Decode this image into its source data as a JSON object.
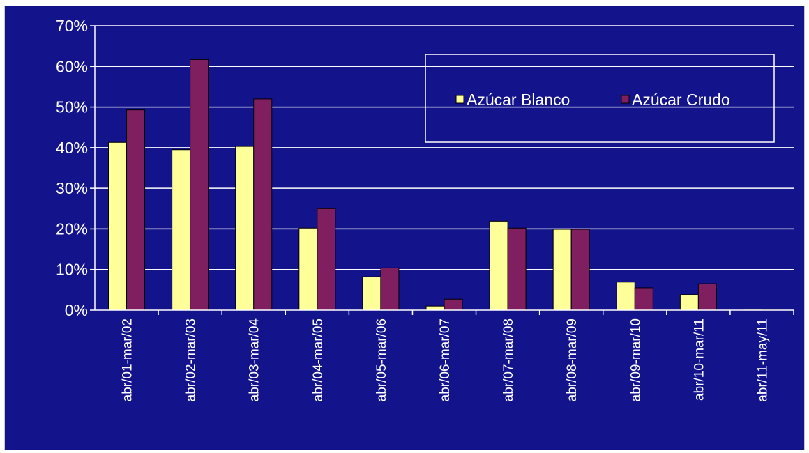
{
  "chart_data": {
    "type": "bar",
    "title": "",
    "xlabel": "",
    "ylabel": "",
    "ylim": [
      0,
      70
    ],
    "y_unit": "%",
    "y_ticks": [
      "0%",
      "10%",
      "20%",
      "30%",
      "40%",
      "50%",
      "60%",
      "70%"
    ],
    "grid": true,
    "legend_position": "top-right",
    "categories": [
      "abr/01-mar/02",
      "abr/02-mar/03",
      "abr/03-mar/04",
      "abr/04-mar/05",
      "abr/05-mar/06",
      "abr/06-mar/07",
      "abr/07-mar/08",
      "abr/08-mar/09",
      "abr/09-mar/10",
      "abr/10-mar/11",
      "abr/11-may/11"
    ],
    "series": [
      {
        "name": "Azúcar Blanco",
        "color": "#ffff99",
        "values": [
          41.3,
          39.5,
          40.3,
          20.2,
          8.2,
          1.0,
          21.9,
          19.9,
          6.9,
          3.8,
          0.2
        ]
      },
      {
        "name": "Azúcar Crudo",
        "color": "#7f1f5f",
        "values": [
          49.3,
          61.7,
          52.0,
          25.0,
          10.4,
          2.7,
          20.2,
          19.9,
          5.5,
          6.5,
          0.2
        ]
      }
    ],
    "colors": {
      "background": "#13138c",
      "grid": "#ffffff",
      "text": "#ffffff"
    }
  }
}
